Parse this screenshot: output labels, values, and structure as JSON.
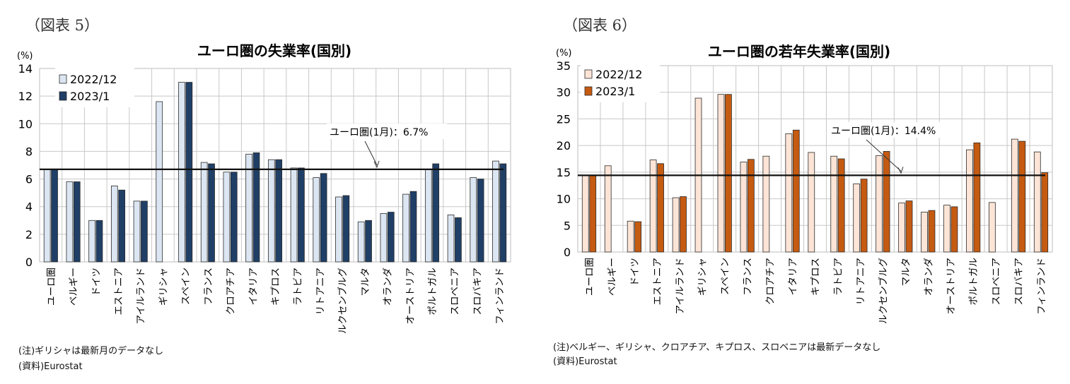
{
  "chart_data": [
    {
      "figure_label": "（図表 5）",
      "type": "bar",
      "title": "ユーロ圏の失業率(国別)",
      "ylabel": "(%)",
      "ylim": [
        0,
        14
      ],
      "yticks": [
        0,
        2,
        4,
        6,
        8,
        10,
        12,
        14
      ],
      "grid": true,
      "legend_position": "top-left",
      "categories": [
        "ユーロ圏",
        "ベルギー",
        "ドイツ",
        "エストニア",
        "アイルランド",
        "ギリシャ",
        "スペイン",
        "フランス",
        "クロアチア",
        "イタリア",
        "キプロス",
        "ラトビア",
        "リトアニア",
        "ルクセンブルグ",
        "マルタ",
        "オランダ",
        "オーストリア",
        "ポルトガル",
        "スロベニア",
        "スロバキア",
        "フィンランド"
      ],
      "series": [
        {
          "name": "2022/12",
          "color": "#dce6f2",
          "values": [
            6.7,
            5.8,
            3.0,
            5.5,
            4.4,
            11.6,
            13.0,
            7.2,
            6.5,
            7.8,
            7.4,
            6.8,
            6.1,
            4.7,
            2.9,
            3.5,
            4.9,
            6.7,
            3.4,
            6.1,
            7.3
          ]
        },
        {
          "name": "2023/1",
          "color": "#1f3f66",
          "values": [
            6.7,
            5.8,
            3.0,
            5.2,
            4.4,
            null,
            13.0,
            7.1,
            6.5,
            7.9,
            7.4,
            6.8,
            6.4,
            4.8,
            3.0,
            3.6,
            5.1,
            7.1,
            3.2,
            6.0,
            7.1
          ]
        }
      ],
      "reference_line": {
        "value": 6.7,
        "label": "ユーロ圏(1月)：6.7%"
      },
      "notes": [
        "(注)ギリシャは最新月のデータなし",
        "(資料)Eurostat"
      ]
    },
    {
      "figure_label": "（図表 6）",
      "type": "bar",
      "title": "ユーロ圏の若年失業率(国別)",
      "ylabel": "(%)",
      "ylim": [
        0,
        35
      ],
      "yticks": [
        0,
        5,
        10,
        15,
        20,
        25,
        30,
        35
      ],
      "grid": true,
      "legend_position": "top-left",
      "categories": [
        "ユーロ圏",
        "ベルギー",
        "ドイツ",
        "エストニア",
        "アイルランド",
        "ギリシャ",
        "スペイン",
        "フランス",
        "クロアチア",
        "イタリア",
        "キプロス",
        "ラトビア",
        "リトアニア",
        "ルクセンブルグ",
        "マルタ",
        "オランダ",
        "オーストリア",
        "ポルトガル",
        "スロベニア",
        "スロバキア",
        "フィンランド"
      ],
      "series": [
        {
          "name": "2022/12",
          "color": "#fce4d6",
          "values": [
            14.4,
            16.2,
            5.8,
            17.3,
            10.2,
            28.9,
            29.6,
            16.9,
            18.0,
            22.2,
            18.7,
            18.0,
            12.8,
            18.1,
            9.2,
            7.5,
            8.8,
            19.2,
            9.3,
            21.2,
            18.8
          ]
        },
        {
          "name": "2023/1",
          "color": "#c55a11",
          "values": [
            14.4,
            null,
            5.7,
            16.6,
            10.4,
            null,
            29.6,
            17.4,
            null,
            22.9,
            null,
            17.5,
            13.7,
            18.9,
            9.6,
            7.8,
            8.5,
            20.5,
            null,
            20.8,
            14.9
          ]
        }
      ],
      "reference_line": {
        "value": 14.4,
        "label": "ユーロ圏(1月)：14.4%"
      },
      "notes": [
        "(注)ベルギー、ギリシャ、クロアチア、キプロス、スロベニアは最新データなし",
        "(資料)Eurostat"
      ]
    }
  ]
}
